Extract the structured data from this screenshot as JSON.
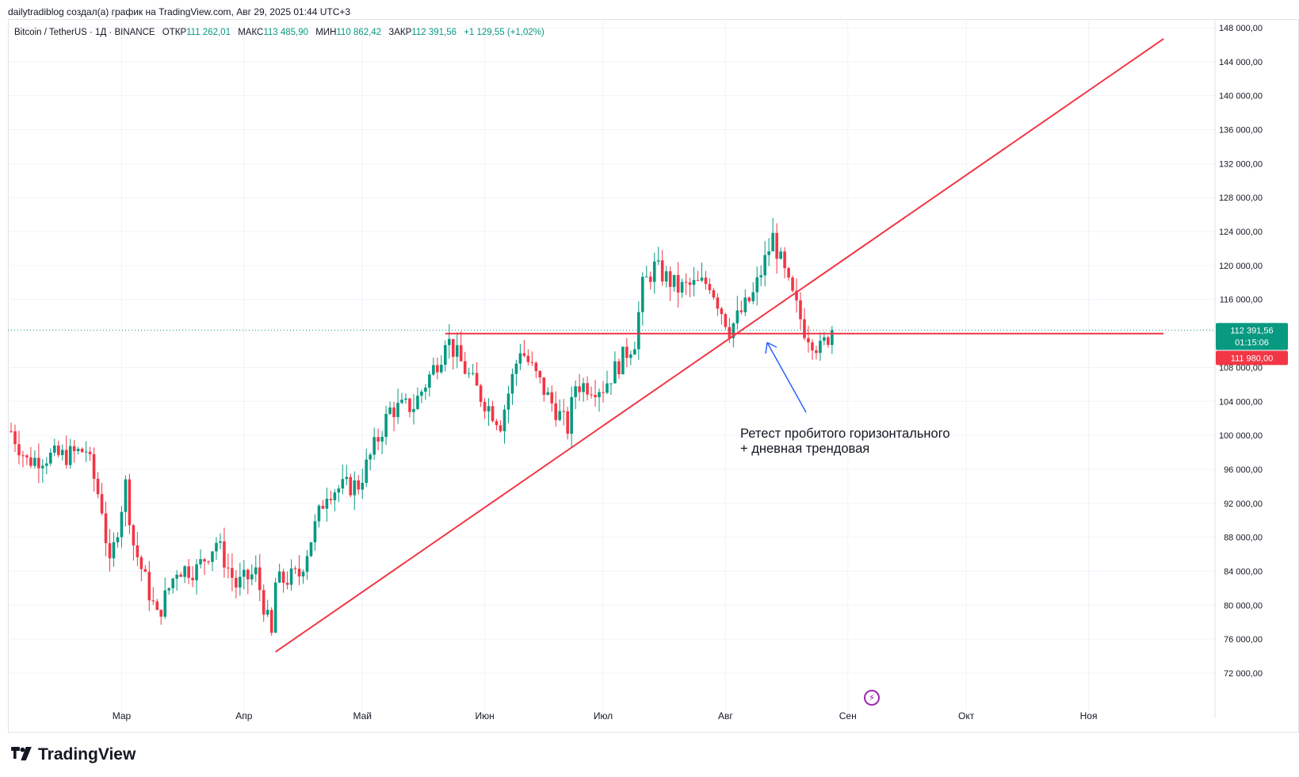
{
  "credit": "dailytradiblog создал(а) график на TradingView.com, Авг 29, 2025 01:44 UTC+3",
  "legend": {
    "symbol": "Bitcoin / TetherUS · 1Д · BINANCE",
    "open_label": "ОТКР",
    "open": "111 262,01",
    "high_label": "МАКС",
    "high": "113 485,90",
    "low_label": "МИН",
    "low": "110 862,42",
    "close_label": "ЗАКР",
    "close": "112 391,56",
    "change": "+1 129,55 (+1,02%)"
  },
  "annotation": {
    "line1": "Ретест пробитого горизонтального",
    "line2": "+ дневная трендовая"
  },
  "brand": "TradingView",
  "price_badges": {
    "last": "112 391,56",
    "countdown": "01:15:06",
    "level": "111 980,00"
  },
  "colors": {
    "up": "#089981",
    "down": "#f23645",
    "line": "#f23645",
    "arrow": "#2962ff",
    "grid": "#f0f3fa"
  },
  "chart_data": {
    "type": "candlestick",
    "symbol": "BTCUSDT",
    "timeframe": "1D",
    "ylim": [
      68000,
      150000
    ],
    "y_ticks": [
      "148 000,00",
      "144 000,00",
      "140 000,00",
      "136 000,00",
      "132 000,00",
      "128 000,00",
      "124 000,00",
      "120 000,00",
      "116 000,00",
      "108 000,00",
      "104 000,00",
      "100 000,00",
      "96 000,00",
      "92 000,00",
      "88 000,00",
      "84 000,00",
      "80 000,00",
      "76 000,00",
      "72 000,00"
    ],
    "x_labels": [
      "Мар",
      "Апр",
      "Май",
      "Июн",
      "Июл",
      "Авг",
      "Сен",
      "Окт",
      "Ноя"
    ],
    "close_series": [
      {
        "date": "2025-02-01",
        "close": 100500
      },
      {
        "date": "2025-02-05",
        "close": 97000
      },
      {
        "date": "2025-02-10",
        "close": 97500
      },
      {
        "date": "2025-02-15",
        "close": 97600
      },
      {
        "date": "2025-02-20",
        "close": 98300
      },
      {
        "date": "2025-02-24",
        "close": 91500
      },
      {
        "date": "2025-02-26",
        "close": 84300
      },
      {
        "date": "2025-03-02",
        "close": 94200
      },
      {
        "date": "2025-03-04",
        "close": 87200
      },
      {
        "date": "2025-03-10",
        "close": 78600
      },
      {
        "date": "2025-03-15",
        "close": 84300
      },
      {
        "date": "2025-03-20",
        "close": 84200
      },
      {
        "date": "2025-03-25",
        "close": 87500
      },
      {
        "date": "2025-03-30",
        "close": 82300
      },
      {
        "date": "2025-04-04",
        "close": 83800
      },
      {
        "date": "2025-04-08",
        "close": 76300
      },
      {
        "date": "2025-04-09",
        "close": 82600
      },
      {
        "date": "2025-04-15",
        "close": 83600
      },
      {
        "date": "2025-04-22",
        "close": 93500
      },
      {
        "date": "2025-04-30",
        "close": 94200
      },
      {
        "date": "2025-05-08",
        "close": 103000
      },
      {
        "date": "2025-05-14",
        "close": 103500
      },
      {
        "date": "2025-05-21",
        "close": 109600
      },
      {
        "date": "2025-05-22",
        "close": 111700
      },
      {
        "date": "2025-05-31",
        "close": 104600
      },
      {
        "date": "2025-06-05",
        "close": 101500
      },
      {
        "date": "2025-06-10",
        "close": 110300
      },
      {
        "date": "2025-06-17",
        "close": 104500
      },
      {
        "date": "2025-06-22",
        "close": 100900
      },
      {
        "date": "2025-06-24",
        "close": 106000
      },
      {
        "date": "2025-07-01",
        "close": 105700
      },
      {
        "date": "2025-07-09",
        "close": 111200
      },
      {
        "date": "2025-07-11",
        "close": 117500
      },
      {
        "date": "2025-07-14",
        "close": 119800
      },
      {
        "date": "2025-07-20",
        "close": 117300
      },
      {
        "date": "2025-07-28",
        "close": 118000
      },
      {
        "date": "2025-08-02",
        "close": 112500
      },
      {
        "date": "2025-08-08",
        "close": 116500
      },
      {
        "date": "2025-08-13",
        "close": 123300
      },
      {
        "date": "2025-08-17",
        "close": 117500
      },
      {
        "date": "2025-08-21",
        "close": 112500
      },
      {
        "date": "2025-08-25",
        "close": 110100
      },
      {
        "date": "2025-08-28",
        "close": 112391.56
      }
    ],
    "lines": [
      {
        "name": "horizontal",
        "from": {
          "date": "2025-05-22",
          "price": 111980
        },
        "to": {
          "date": "2025-11-20",
          "price": 111980
        }
      },
      {
        "name": "trend",
        "from": {
          "date": "2025-04-09",
          "price": 74500
        },
        "to": {
          "date": "2025-11-20",
          "price": 146700
        }
      }
    ]
  }
}
